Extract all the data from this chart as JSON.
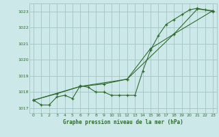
{
  "title": "Graphe pression niveau de la mer (hPa)",
  "bg_color": "#cce8e8",
  "grid_color": "#a8c8c8",
  "line_color": "#2d6b2d",
  "xlim": [
    -0.5,
    23.5
  ],
  "ylim": [
    1016.7,
    1023.5
  ],
  "yticks": [
    1017,
    1018,
    1019,
    1020,
    1021,
    1022,
    1023
  ],
  "xticks": [
    0,
    1,
    2,
    3,
    4,
    5,
    6,
    7,
    8,
    9,
    10,
    11,
    12,
    13,
    14,
    15,
    16,
    17,
    18,
    19,
    20,
    21,
    22,
    23
  ],
  "series1_x": [
    0,
    1,
    2,
    3,
    4,
    5,
    6,
    7,
    8,
    9,
    10,
    11,
    12,
    13,
    14,
    15,
    16,
    17,
    18,
    19,
    20,
    21,
    22,
    23
  ],
  "series1_y": [
    1017.5,
    1017.2,
    1017.2,
    1017.7,
    1017.8,
    1017.6,
    1018.4,
    1018.3,
    1018.0,
    1018.0,
    1017.8,
    1017.8,
    1017.8,
    1017.8,
    1019.3,
    1020.6,
    1021.5,
    1022.2,
    1022.5,
    1022.8,
    1023.1,
    1023.2,
    1023.1,
    1023.0
  ],
  "series2_x": [
    0,
    3,
    6,
    9,
    12,
    15,
    18,
    21,
    23
  ],
  "series2_y": [
    1017.5,
    1017.9,
    1018.35,
    1018.5,
    1018.8,
    1020.7,
    1021.6,
    1023.15,
    1023.05
  ],
  "series3_x": [
    0,
    6,
    12,
    18,
    23
  ],
  "series3_y": [
    1017.5,
    1018.35,
    1018.8,
    1021.6,
    1023.05
  ]
}
